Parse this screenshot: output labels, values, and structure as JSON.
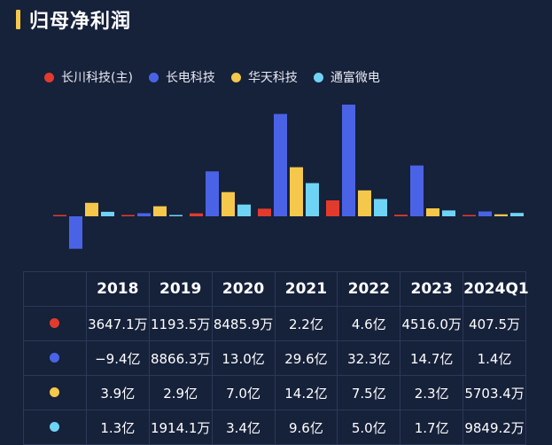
{
  "title": "归母净利润",
  "colors": {
    "background": "#16213a",
    "title_bar": "#f5c84c",
    "series": [
      "#e23b2e",
      "#4a63e6",
      "#f5c84c",
      "#6fd3f5"
    ]
  },
  "chart_data": {
    "type": "bar",
    "title": "归母净利润",
    "categories": [
      "2018",
      "2019",
      "2020",
      "2021",
      "2022",
      "2023",
      "2024Q1"
    ],
    "unit": "亿",
    "series": [
      {
        "name": "长川科技(主)",
        "values": [
          0.36,
          0.12,
          0.85,
          2.2,
          4.6,
          0.45,
          0.04
        ]
      },
      {
        "name": "长电科技",
        "values": [
          -9.4,
          0.89,
          13.0,
          29.6,
          32.3,
          14.7,
          1.4
        ]
      },
      {
        "name": "华天科技",
        "values": [
          3.9,
          2.9,
          7.0,
          14.2,
          7.5,
          2.3,
          0.57
        ]
      },
      {
        "name": "通富微电",
        "values": [
          1.3,
          0.19,
          3.4,
          9.6,
          5.0,
          1.7,
          0.98
        ]
      }
    ],
    "legend_position": "top-left",
    "grid": false
  },
  "table": {
    "headers": [
      "2018",
      "2019",
      "2020",
      "2021",
      "2022",
      "2023",
      "2024Q1"
    ],
    "rows": [
      [
        "3647.1万",
        "1193.5万",
        "8485.9万",
        "2.2亿",
        "4.6亿",
        "4516.0万",
        "407.5万"
      ],
      [
        "−9.4亿",
        "8866.3万",
        "13.0亿",
        "29.6亿",
        "32.3亿",
        "14.7亿",
        "1.4亿"
      ],
      [
        "3.9亿",
        "2.9亿",
        "7.0亿",
        "14.2亿",
        "7.5亿",
        "2.3亿",
        "5703.4万"
      ],
      [
        "1.3亿",
        "1914.1万",
        "3.4亿",
        "9.6亿",
        "5.0亿",
        "1.7亿",
        "9849.2万"
      ]
    ]
  }
}
